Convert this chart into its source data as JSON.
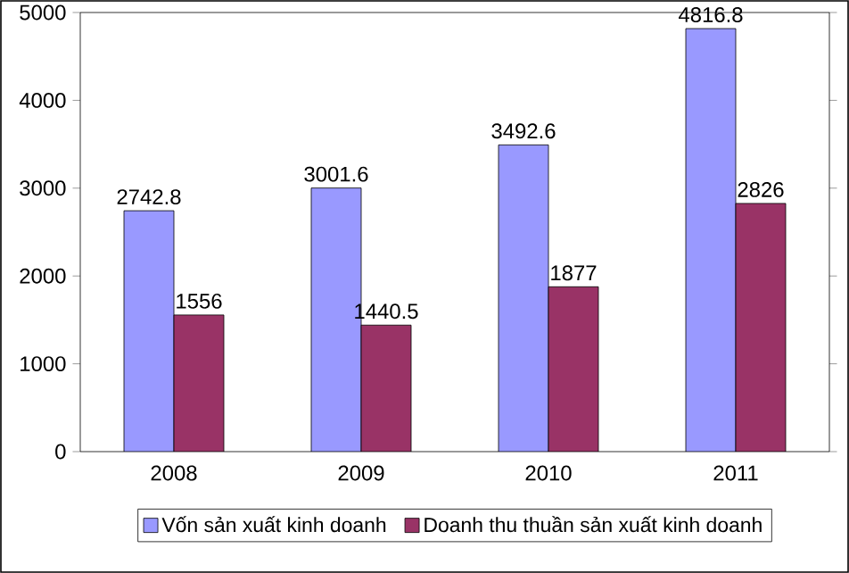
{
  "chart_data": {
    "type": "bar",
    "categories": [
      "2008",
      "2009",
      "2010",
      "2011"
    ],
    "series": [
      {
        "name": "Vốn sản xuất kinh doanh",
        "color": "#9999ff",
        "values": [
          2742.8,
          3001.6,
          3492.6,
          4816.8
        ]
      },
      {
        "name": "Doanh thu thuần sản xuất kinh doanh",
        "color": "#993366",
        "values": [
          1556,
          1440.5,
          1877,
          2826
        ]
      }
    ],
    "ylim": [
      0,
      5000
    ],
    "yticks": [
      0,
      1000,
      2000,
      3000,
      4000,
      5000
    ],
    "data_labels": true,
    "legend": "bottom",
    "grid": false
  }
}
